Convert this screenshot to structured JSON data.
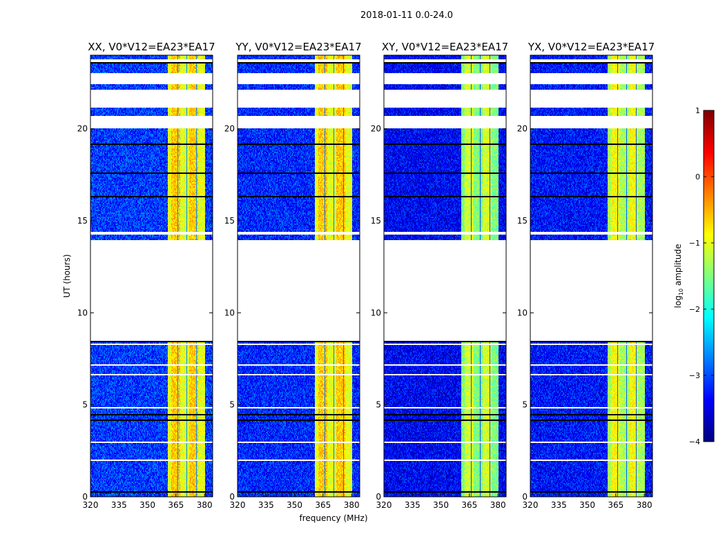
{
  "chart_data": {
    "type": "heatmap",
    "title": "2018-01-11 0.0-24.0",
    "xlabel": "frequency (MHz)",
    "ylabel": "UT (hours)",
    "xlim": [
      320,
      384.3
    ],
    "ylim": [
      0,
      24
    ],
    "xticks": [
      320,
      335,
      350,
      365,
      380
    ],
    "yticks": [
      0,
      5,
      10,
      15,
      20
    ],
    "panels": [
      {
        "title": "XX, V0*V12=EA23*EA17",
        "band_level": -0.8,
        "base_level": -3.1
      },
      {
        "title": "YY, V0*V12=EA23*EA17",
        "band_level": -0.8,
        "base_level": -3.2
      },
      {
        "title": "XY, V0*V12=EA23*EA17",
        "band_level": -1.3,
        "base_level": -3.4
      },
      {
        "title": "YX, V0*V12=EA23*EA17",
        "band_level": -1.1,
        "base_level": -3.3
      }
    ],
    "bright_band_mhz": [
      360.7,
      380.4
    ],
    "flagged_intervals_hours": [
      [
        8.47,
        13.95
      ],
      [
        20.0,
        20.7
      ],
      [
        21.26,
        22.12
      ],
      [
        22.46,
        22.99
      ]
    ],
    "colorbar": {
      "label": "log",
      "label_sub": "10",
      "label_suffix": " amplitude",
      "colormap": "jet",
      "range": [
        -4,
        1
      ],
      "ticks": [
        1,
        0,
        -1,
        -2,
        -3,
        -4
      ],
      "tick_labels": [
        "1",
        "0",
        "−1",
        "−2",
        "−3",
        "−4"
      ]
    }
  }
}
